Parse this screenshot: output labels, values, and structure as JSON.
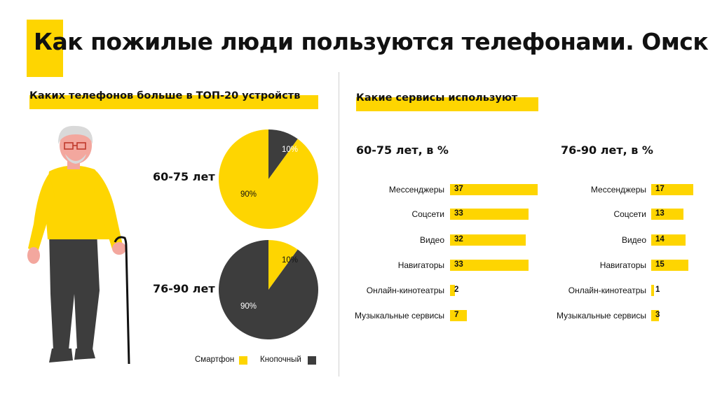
{
  "title": "Как пожилые люди пользуются телефонами. Омск",
  "left_subtitle": "Каких телефонов больше в ТОП-20 устройств",
  "right_subtitle": "Какие сервисы используют",
  "colors": {
    "accent": "#fed501",
    "dark": "#3d3d3d"
  },
  "legend": [
    {
      "label": "Смартфон",
      "color": "#fed501"
    },
    {
      "label": "Кнопочный",
      "color": "#3d3d3d"
    }
  ],
  "chart_data": [
    {
      "type": "pie",
      "group": "60-75 лет",
      "slices": [
        {
          "name": "Смартфон",
          "value": 90,
          "label": "90%",
          "color": "#fed501"
        },
        {
          "name": "Кнопочный",
          "value": 10,
          "label": "10%",
          "color": "#3d3d3d"
        }
      ]
    },
    {
      "type": "pie",
      "group": "76-90 лет",
      "slices": [
        {
          "name": "Смартфон",
          "value": 10,
          "label": "10%",
          "color": "#fed501"
        },
        {
          "name": "Кнопочный",
          "value": 90,
          "label": "90%",
          "color": "#3d3d3d"
        }
      ]
    },
    {
      "type": "bar",
      "title": "60-75 лет, в %",
      "categories": [
        "Мессенджеры",
        "Соцсети",
        "Видео",
        "Навигаторы",
        "Онлайн-кинотеатры",
        "Музыкальные сервисы"
      ],
      "values": [
        37,
        33,
        32,
        33,
        2,
        7
      ]
    },
    {
      "type": "bar",
      "title": "76-90 лет, в %",
      "categories": [
        "Мессенджеры",
        "Соцсети",
        "Видео",
        "Навигаторы",
        "Онлайн-кинотеатры",
        "Музыкальные сервисы"
      ],
      "values": [
        17,
        13,
        14,
        15,
        1,
        3
      ]
    }
  ]
}
